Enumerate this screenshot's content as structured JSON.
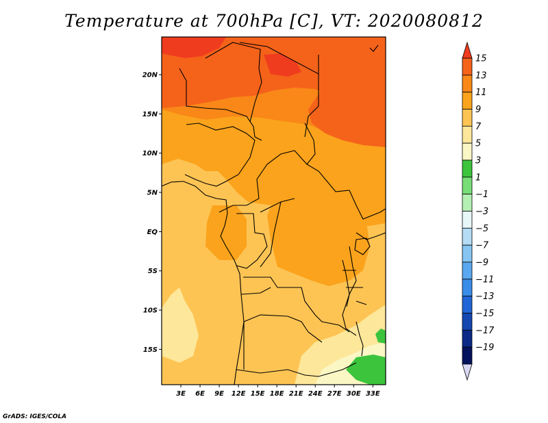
{
  "title": "Temperature at 700hPa [C], VT: 2020080812",
  "credit": "GrADS: IGES/COLA",
  "map": {
    "lat_labels": [
      "20N",
      "15N",
      "10N",
      "5N",
      "EQ",
      "5S",
      "10S",
      "15S"
    ],
    "lat_values": [
      20,
      15,
      10,
      5,
      0,
      -5,
      -10,
      -15
    ],
    "lon_labels": [
      "3E",
      "6E",
      "9E",
      "12E",
      "15E",
      "18E",
      "21E",
      "24E",
      "27E",
      "30E",
      "33E"
    ],
    "lon_values": [
      3,
      6,
      9,
      12,
      15,
      18,
      21,
      24,
      27,
      30,
      33
    ],
    "lat_range": [
      -19.5,
      24.8
    ],
    "lon_range": [
      0,
      35
    ]
  },
  "colorbar": {
    "labels": [
      "15",
      "13",
      "11",
      "9",
      "7",
      "5",
      "3",
      "1",
      "−1",
      "−3",
      "−5",
      "−7",
      "−9",
      "−11",
      "−13",
      "−15",
      "−17",
      "−19"
    ],
    "colors": [
      "#f03c1e",
      "#f5621a",
      "#f98818",
      "#fba31c",
      "#fdc454",
      "#fde79a",
      "#fbf7c5",
      "#3cc43c",
      "#78de78",
      "#b4f0b4",
      "#e8f7f7",
      "#b5dcf5",
      "#86c4f2",
      "#5aa8ef",
      "#3a8ce9",
      "#2166d6",
      "#1447b0",
      "#0b2a88",
      "#05125e",
      "#d8d8f4"
    ]
  }
}
